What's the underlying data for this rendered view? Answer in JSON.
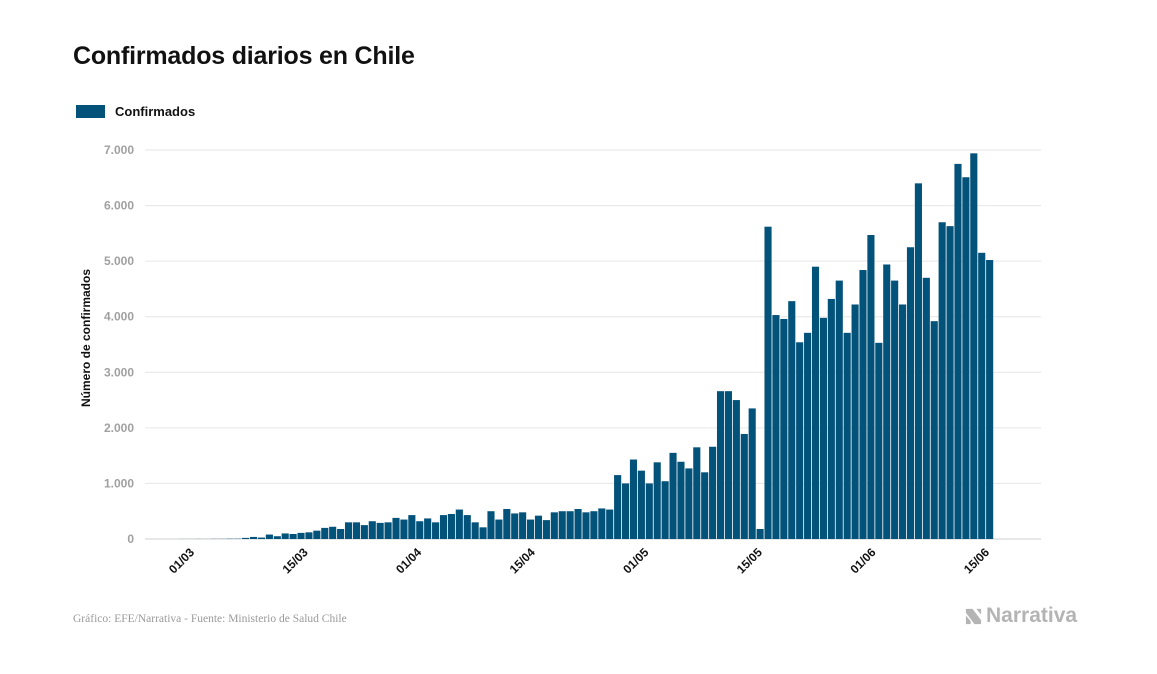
{
  "title": "Confirmados diarios en Chile",
  "footer": {
    "source": "Gráfico: EFE/Narrativa - Fuente: Ministerio de Salud Chile",
    "brand": "Narrativa",
    "brand_icon": "narrativa-logo-icon"
  },
  "colors": {
    "bar": "#03527a",
    "grid": "#e6e6e6",
    "tick_label": "#a0a0a0",
    "brand": "#b4b4b4"
  },
  "chart_data": {
    "type": "bar",
    "title": "Confirmados diarios en Chile",
    "ylabel": "Número de confirmados",
    "xlabel": "",
    "ylim": [
      0,
      7000
    ],
    "yticks": [
      0,
      1000,
      2000,
      3000,
      4000,
      5000,
      6000,
      7000
    ],
    "ytick_labels": [
      "0",
      "1.000",
      "2.000",
      "3.000",
      "4.000",
      "5.000",
      "6.000",
      "7.000"
    ],
    "x_tick_labels": [
      "01/03",
      "15/03",
      "01/04",
      "15/04",
      "01/05",
      "15/05",
      "01/06",
      "15/06"
    ],
    "legend_position": "top-left",
    "grid": true,
    "series": [
      {
        "name": "Confirmados",
        "color": "#03527a",
        "values": [
          0,
          0,
          0,
          1,
          1,
          2,
          1,
          3,
          3,
          6,
          6,
          20,
          37,
          26,
          80,
          50,
          100,
          90,
          110,
          120,
          150,
          200,
          220,
          180,
          300,
          300,
          250,
          320,
          290,
          300,
          380,
          350,
          430,
          320,
          370,
          300,
          430,
          450,
          530,
          430,
          300,
          210,
          500,
          350,
          540,
          460,
          480,
          350,
          420,
          340,
          480,
          500,
          500,
          540,
          480,
          500,
          550,
          530,
          1150,
          1000,
          1430,
          1230,
          1000,
          1380,
          1040,
          1550,
          1390,
          1270,
          1650,
          1200,
          1660,
          2660,
          2660,
          2500,
          1890,
          2350,
          180,
          5620,
          4030,
          3960,
          4280,
          3540,
          3710,
          4900,
          3980,
          4320,
          4650,
          3710,
          4220,
          4840,
          5470,
          3530,
          4940,
          4650,
          4220,
          5250,
          6400,
          4700,
          3920,
          5700,
          5630,
          6750,
          6510,
          6940,
          5150,
          5020
        ]
      }
    ]
  }
}
